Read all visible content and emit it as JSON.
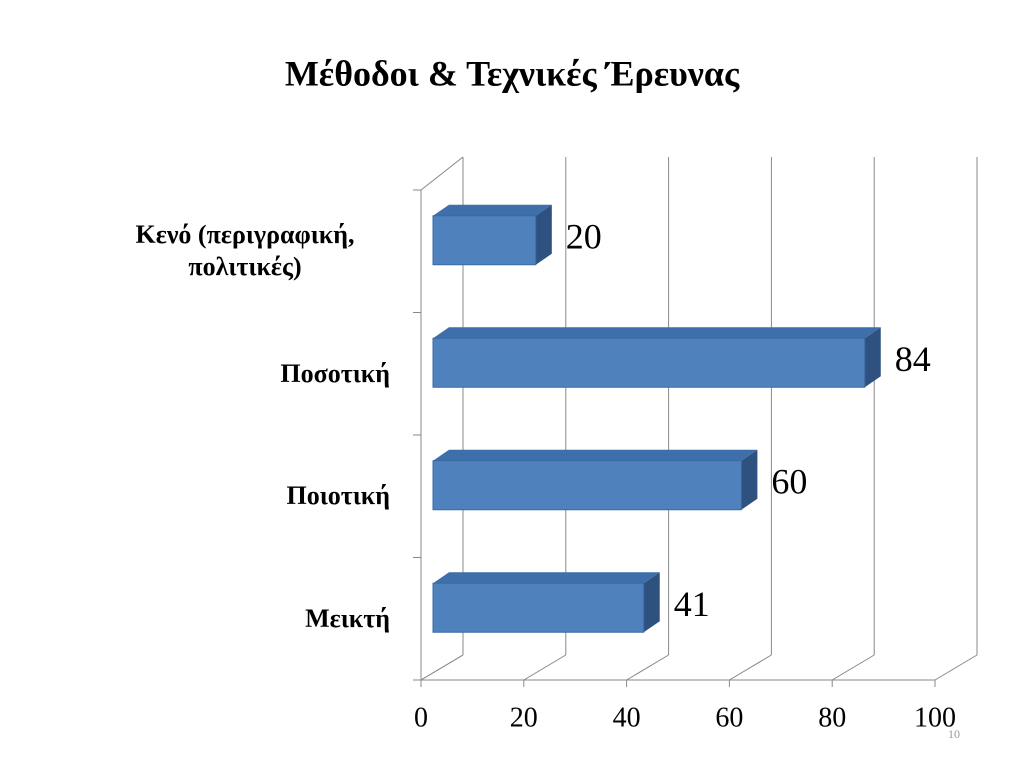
{
  "chart_data": {
    "type": "bar3d_horizontal",
    "title": "Μέθοδοι & Τεχνικές Έρευνας",
    "categories": [
      "Κενό (περιγραφική, πολιτικές)",
      "Ποσοτική",
      "Ποιοτική",
      "Μεικτή"
    ],
    "values": [
      20,
      84,
      60,
      41
    ],
    "color": "#4f81bd",
    "xlim": [
      0,
      100
    ],
    "xticks": [
      0,
      20,
      40,
      60,
      80,
      100
    ],
    "grid": true
  },
  "slide_number": "10"
}
